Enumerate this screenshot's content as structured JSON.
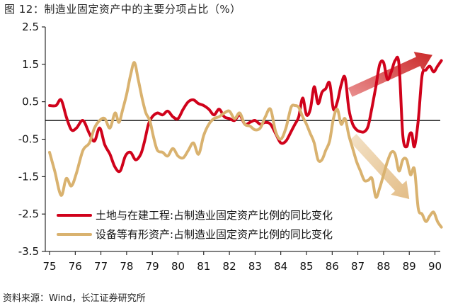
{
  "title": "图 12：制造业固定资产中的主要分项占比（%）",
  "source": "资料来源：Wind，长江证券研究所",
  "chart_data": {
    "type": "line",
    "title": "图 12：制造业固定资产中的主要分项占比（%）",
    "xlabel": "",
    "ylabel": "",
    "xlim": [
      1975,
      1990.5
    ],
    "ylim": [
      -3.5,
      2.5
    ],
    "y_ticks": [
      2.5,
      1.5,
      0.5,
      -0.5,
      -1.5,
      -2.5,
      -3.5
    ],
    "y_tick_labels": [
      "2.5",
      "1.5",
      "0.5",
      "-0.5",
      "-1.5",
      "-2.5",
      "-3.5"
    ],
    "x_ticks": [
      1975,
      1976,
      1977,
      1978,
      1979,
      1980,
      1981,
      1982,
      1983,
      1984,
      1985,
      1986,
      1987,
      1988,
      1989,
      1990
    ],
    "x_tick_labels": [
      "75",
      "76",
      "77",
      "78",
      "79",
      "80",
      "81",
      "82",
      "83",
      "84",
      "85",
      "86",
      "87",
      "88",
      "89",
      "90"
    ],
    "legend_position": "bottom-right",
    "grid": false,
    "series": [
      {
        "name": "土地与在建工程:占制造业固定资产比例的同比变化",
        "color": "#d0021b",
        "x": [
          1975.0,
          1975.25,
          1975.45,
          1975.65,
          1975.85,
          1976.05,
          1976.3,
          1976.55,
          1976.75,
          1976.95,
          1977.15,
          1977.35,
          1977.55,
          1977.75,
          1977.95,
          1978.15,
          1978.35,
          1978.55,
          1978.7,
          1978.85,
          1979.0,
          1979.2,
          1979.4,
          1979.6,
          1979.8,
          1980.0,
          1980.2,
          1980.4,
          1980.6,
          1980.8,
          1981.0,
          1981.2,
          1981.4,
          1981.6,
          1981.8,
          1982.0,
          1982.2,
          1982.4,
          1982.6,
          1982.8,
          1983.0,
          1983.2,
          1983.4,
          1983.6,
          1983.8,
          1984.0,
          1984.2,
          1984.4,
          1984.55,
          1984.7,
          1984.85,
          1985.0,
          1985.15,
          1985.3,
          1985.45,
          1985.6,
          1985.75,
          1985.9,
          1986.05,
          1986.2,
          1986.35,
          1986.5,
          1986.65,
          1986.8,
          1986.95,
          1987.1,
          1987.25,
          1987.4,
          1987.55,
          1987.7,
          1987.85,
          1988.0,
          1988.15,
          1988.3,
          1988.45,
          1988.6,
          1988.75,
          1988.9,
          1989.0,
          1989.1,
          1989.2,
          1989.35,
          1989.5,
          1989.65,
          1989.8,
          1989.95,
          1990.1,
          1990.25
        ],
        "values": [
          0.4,
          0.4,
          0.55,
          0.1,
          -0.25,
          -0.2,
          0.0,
          -0.35,
          -0.55,
          -0.2,
          -0.65,
          -0.9,
          -1.25,
          -1.35,
          -0.95,
          -0.85,
          -1.05,
          -0.9,
          -0.55,
          -0.1,
          0.1,
          0.2,
          0.15,
          0.25,
          0.1,
          0.05,
          0.3,
          0.5,
          0.55,
          0.45,
          0.4,
          0.3,
          0.15,
          0.3,
          0.1,
          0.05,
          0.0,
          0.15,
          -0.1,
          -0.05,
          0.0,
          -0.1,
          -0.05,
          -0.1,
          -0.35,
          -0.6,
          -0.55,
          -0.3,
          -0.1,
          0.1,
          0.6,
          0.15,
          0.3,
          0.9,
          0.45,
          0.75,
          0.85,
          1.0,
          0.3,
          0.5,
          0.95,
          1.15,
          0.3,
          -0.1,
          -0.25,
          -0.3,
          -0.3,
          -0.15,
          0.35,
          0.9,
          1.5,
          1.55,
          1.1,
          1.3,
          1.6,
          1.5,
          -0.4,
          -0.7,
          -0.4,
          -0.35,
          -0.7,
          0.0,
          1.2,
          1.35,
          1.45,
          1.3,
          1.45,
          1.6
        ]
      },
      {
        "name": "设备等有形资产:占制造业固定资产比例的同比变化",
        "color": "#d9b26f",
        "x": [
          1975.0,
          1975.2,
          1975.45,
          1975.65,
          1975.85,
          1976.05,
          1976.3,
          1976.55,
          1976.75,
          1976.95,
          1977.15,
          1977.35,
          1977.55,
          1977.7,
          1977.85,
          1978.0,
          1978.15,
          1978.3,
          1978.45,
          1978.6,
          1978.75,
          1978.9,
          1979.05,
          1979.2,
          1979.4,
          1979.6,
          1979.8,
          1980.0,
          1980.2,
          1980.4,
          1980.6,
          1980.8,
          1981.0,
          1981.2,
          1981.4,
          1981.6,
          1981.8,
          1982.0,
          1982.2,
          1982.4,
          1982.6,
          1982.8,
          1983.0,
          1983.2,
          1983.4,
          1983.6,
          1983.8,
          1984.0,
          1984.2,
          1984.4,
          1984.55,
          1984.7,
          1984.85,
          1985.0,
          1985.15,
          1985.3,
          1985.45,
          1985.6,
          1985.75,
          1985.9,
          1986.05,
          1986.2,
          1986.35,
          1986.5,
          1986.65,
          1986.8,
          1986.95,
          1987.1,
          1987.25,
          1987.4,
          1987.55,
          1987.7,
          1987.85,
          1988.0,
          1988.15,
          1988.3,
          1988.45,
          1988.6,
          1988.75,
          1988.9,
          1989.05,
          1989.2,
          1989.35,
          1989.5,
          1989.65,
          1989.8,
          1989.95,
          1990.1,
          1990.25
        ],
        "values": [
          -0.85,
          -1.35,
          -2.0,
          -1.55,
          -1.75,
          -1.4,
          -0.8,
          -0.6,
          -0.2,
          0.0,
          0.05,
          -0.2,
          0.2,
          -0.05,
          0.3,
          0.7,
          1.2,
          1.55,
          1.1,
          0.6,
          0.2,
          0.0,
          -0.45,
          -0.8,
          -0.85,
          -0.95,
          -0.75,
          -0.95,
          -1.0,
          -0.8,
          -0.6,
          -0.9,
          -0.4,
          -0.1,
          0.05,
          0.1,
          0.2,
          0.25,
          0.05,
          0.2,
          -0.1,
          -0.15,
          -0.25,
          -0.2,
          0.1,
          0.3,
          -0.3,
          -0.5,
          -0.2,
          0.35,
          0.4,
          0.35,
          0.1,
          -0.1,
          -0.35,
          -0.6,
          -1.05,
          -1.05,
          -0.8,
          -0.55,
          0.05,
          0.3,
          -0.1,
          0.05,
          -0.4,
          -0.75,
          -1.1,
          -1.35,
          -1.6,
          -1.6,
          -1.55,
          -2.05,
          -1.8,
          -1.45,
          -1.1,
          -0.85,
          -0.9,
          -1.35,
          -1.05,
          -1.05,
          -1.45,
          -1.3,
          -2.35,
          -2.5,
          -2.7,
          -2.55,
          -2.45,
          -2.7,
          -2.85
        ]
      }
    ],
    "annotations": [
      {
        "type": "arrow",
        "color": "#d0021b",
        "from": [
          1986.7,
          0.75
        ],
        "to": [
          1989.9,
          1.75
        ]
      },
      {
        "type": "arrow",
        "color": "#e8c89a",
        "from": [
          1986.8,
          -0.45
        ],
        "to": [
          1989.0,
          -2.1
        ]
      }
    ]
  }
}
